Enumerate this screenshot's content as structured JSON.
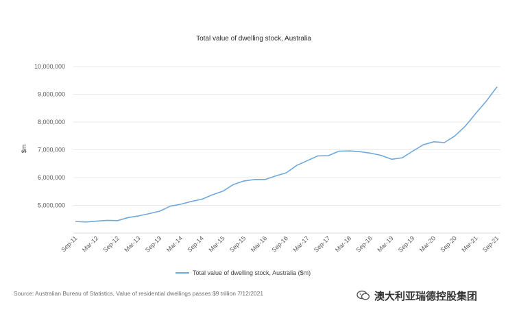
{
  "chart_data": {
    "type": "line",
    "title": "Total value of dwelling stock, Australia",
    "xlabel": "",
    "ylabel": "$m",
    "ylim": [
      4000000,
      10000000
    ],
    "yticks": [
      5000000,
      6000000,
      7000000,
      8000000,
      9000000,
      10000000
    ],
    "ytick_labels": [
      "5,000,000",
      "6,000,000",
      "7,000,000",
      "8,000,000",
      "9,000,000",
      "10,000,000"
    ],
    "x_tick_labels": [
      "Sep-11",
      "Mar-12",
      "Sep-12",
      "Mar-13",
      "Sep-13",
      "Mar-14",
      "Sep-14",
      "Mar-15",
      "Sep-15",
      "Mar-16",
      "Sep-16",
      "Mar-17",
      "Sep-17",
      "Mar-18",
      "Sep-18",
      "Mar-19",
      "Sep-19",
      "Mar-20",
      "Sep-20",
      "Mar-21",
      "Sep-21"
    ],
    "grid": true,
    "legend_position": "bottom",
    "series": [
      {
        "name": "Total value of dwelling stock, Australia ($m)",
        "color": "#6fa8dc",
        "values": [
          4420000,
          4400000,
          4430000,
          4460000,
          4450000,
          4560000,
          4620000,
          4700000,
          4790000,
          4970000,
          5040000,
          5140000,
          5220000,
          5380000,
          5510000,
          5750000,
          5880000,
          5930000,
          5930000,
          6060000,
          6170000,
          6440000,
          6610000,
          6780000,
          6790000,
          6950000,
          6960000,
          6930000,
          6880000,
          6800000,
          6660000,
          6710000,
          6950000,
          7180000,
          7290000,
          7260000,
          7500000,
          7860000,
          8320000,
          8760000,
          9270000
        ]
      }
    ]
  },
  "source": "Source: Australian Bureau of Statistics, Value of residential dwellings passes $9 trillion 7/12/2021",
  "watermark": "澳大利亚瑞德控股集团"
}
